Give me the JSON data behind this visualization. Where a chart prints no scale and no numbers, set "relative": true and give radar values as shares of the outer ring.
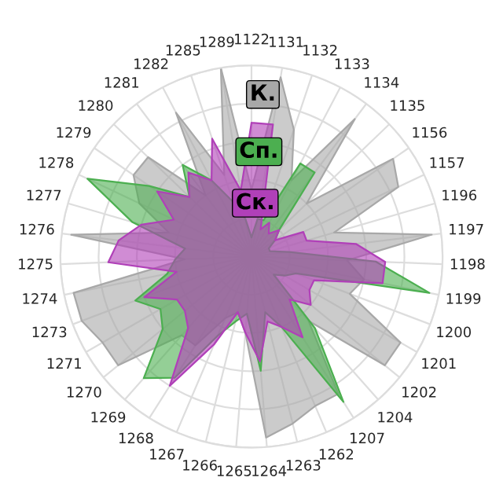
{
  "chart_data": {
    "type": "radar",
    "relative": true,
    "grid": true,
    "legend": false,
    "categories": [
      "1122",
      "1131",
      "1132",
      "1133",
      "1134",
      "1135",
      "1156",
      "1157",
      "1196",
      "1197",
      "1198",
      "1199",
      "1200",
      "1201",
      "1202",
      "1204",
      "1207",
      "1262",
      "1263",
      "1264",
      "1265",
      "1266",
      "1267",
      "1268",
      "1269",
      "1270",
      "1271",
      "1273",
      "1274",
      "1275",
      "1276",
      "1277",
      "1278",
      "1279",
      "1280",
      "1281",
      "1282",
      "1285",
      "1289"
    ],
    "series": [
      {
        "name": "К.",
        "color": "#a8a8a8",
        "values": [
          0.35,
          0.95,
          0.7,
          0.45,
          0.9,
          0.4,
          0.9,
          0.85,
          0.45,
          0.95,
          0.5,
          0.6,
          0.55,
          0.9,
          0.9,
          0.45,
          0.85,
          0.85,
          0.9,
          0.95,
          0.4,
          0.3,
          0.35,
          0.55,
          0.55,
          0.9,
          0.9,
          0.95,
          0.95,
          0.35,
          0.95,
          0.45,
          0.65,
          0.75,
          0.75,
          0.4,
          0.85,
          0.45,
          1.0
        ]
      },
      {
        "name": "Сп.",
        "color": "#4caf50",
        "values": [
          0.1,
          0.2,
          0.2,
          0.55,
          0.55,
          0.2,
          0.15,
          0.1,
          0.1,
          0.2,
          0.65,
          0.95,
          0.25,
          0.2,
          0.15,
          0.5,
          0.9,
          0.4,
          0.3,
          0.6,
          0.3,
          0.35,
          0.45,
          0.75,
          0.85,
          0.6,
          0.55,
          0.65,
          0.45,
          0.4,
          0.35,
          0.65,
          0.95,
          0.65,
          0.45,
          0.6,
          0.45,
          0.3,
          0.2
        ]
      },
      {
        "name": "Ск.",
        "color": "#b040b8",
        "values": [
          0.7,
          0.7,
          0.15,
          0.2,
          0.15,
          0.2,
          0.15,
          0.3,
          0.3,
          0.55,
          0.7,
          0.7,
          0.35,
          0.35,
          0.4,
          0.3,
          0.5,
          0.4,
          0.35,
          0.55,
          0.4,
          0.3,
          0.5,
          0.8,
          0.5,
          0.45,
          0.45,
          0.6,
          0.4,
          0.75,
          0.7,
          0.6,
          0.45,
          0.6,
          0.45,
          0.55,
          0.45,
          0.65,
          0.35
        ]
      }
    ]
  }
}
